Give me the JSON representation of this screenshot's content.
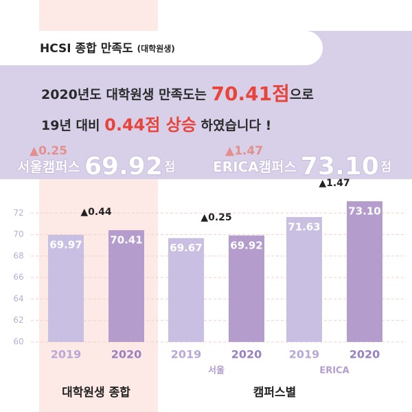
{
  "header": {
    "title": "HCSI 종합 만족도",
    "subtitle": "(대학원생)"
  },
  "headline": {
    "line1": [
      "2020년도 대학원생 만족도는 ",
      "70.41점",
      "으로"
    ],
    "line2": [
      "19년 대비 ",
      "0.44점 상승",
      " 하였습니다 !"
    ]
  },
  "campus_summary": [
    {
      "change": "▲0.25",
      "label": "서울캠퍼스",
      "score": "69.92",
      "unit": "점"
    },
    {
      "change": "▲1.47",
      "label": "ERICA캠퍼스",
      "score": "73.10",
      "unit": "점"
    }
  ],
  "chart_data": {
    "type": "bar",
    "categories": [
      null,
      "서울",
      "ERICA"
    ],
    "section_labels": [
      "대학원생 종합",
      "캠퍼스별"
    ],
    "annotations": [
      "▲0.44",
      "▲0.25",
      "▲1.47"
    ],
    "series": [
      {
        "name": "2019",
        "color": "#c9bfe3",
        "values": [
          69.97,
          69.67,
          71.63
        ],
        "value_labels": [
          "69.97",
          "69.67",
          "71.63"
        ]
      },
      {
        "name": "2020",
        "color": "#b49ccd",
        "values": [
          70.41,
          69.92,
          73.1
        ],
        "value_labels": [
          "70.41",
          "69.92",
          "73.10"
        ]
      }
    ],
    "ylim": [
      60,
      74
    ],
    "yticks": [
      60,
      62,
      64,
      66,
      68,
      70,
      72
    ],
    "grid": true
  }
}
